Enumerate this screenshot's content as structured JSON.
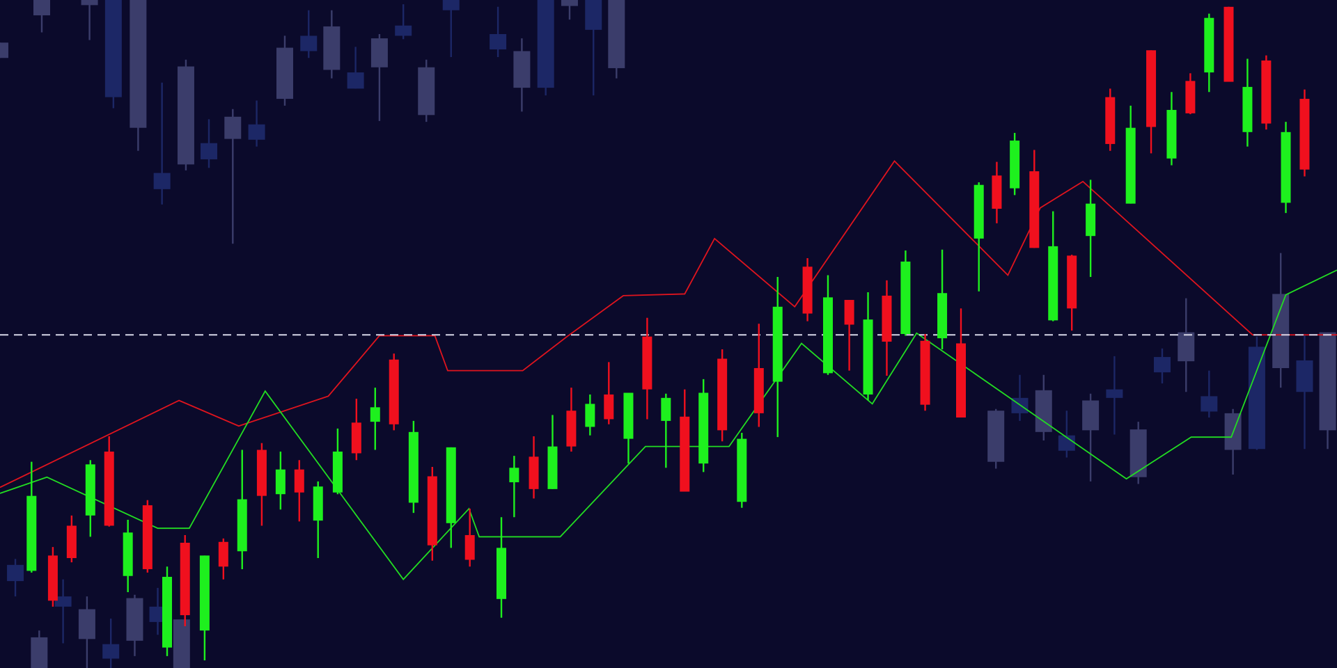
{
  "chart_data": {
    "type": "candlestick",
    "xlim": [
      0,
      1568
    ],
    "ylim": [
      0,
      784
    ],
    "background": "#0b0a2b",
    "up_color": "#1ef01e",
    "down_color": "#f0101e",
    "ghost_candles": [
      {
        "color": "#3b3d6b",
        "x": [
          0,
          49,
          105,
          162,
          218,
          273,
          334,
          389,
          445,
          500,
          612,
          668,
          723,
          46,
          102,
          158,
          213,
          1168,
          1224,
          1279,
          1335,
          1391,
          1446,
          1502,
          1557
        ],
        "open": [
          734,
          784,
          784,
          784,
          706,
          647,
          728,
          753,
          739,
          705,
          724,
          784,
          784,
          36,
          69,
          82,
          57,
          302,
          326,
          314,
          280,
          394,
          299,
          439,
          394
        ],
        "close": [
          716,
          766,
          778,
          634,
          591,
          621,
          668,
          702,
          705,
          649,
          681,
          777,
          704,
          0,
          34,
          32,
          0,
          242,
          277,
          279,
          224,
          360,
          256,
          352,
          279
        ],
        "high": [
          734,
          784,
          784,
          784,
          714,
          656,
          742,
          772,
          744,
          714,
          739,
          784,
          784,
          44,
          84,
          86,
          57,
          304,
          344,
          322,
          289,
          434,
          304,
          487,
          394
        ],
        "low": [
          716,
          746,
          737,
          607,
          584,
          498,
          660,
          692,
          642,
          641,
          653,
          761,
          692,
          0,
          0,
          14,
          0,
          234,
          267,
          219,
          216,
          324,
          227,
          329,
          257
        ]
      },
      {
        "color": "#1c2766",
        "x": [
          133,
          190,
          245,
          301,
          362,
          417,
          473,
          529,
          584,
          640,
          696,
          18,
          74,
          130,
          185,
          1196,
          1251,
          1307,
          1363,
          1418,
          1474,
          1530
        ],
        "open": [
          784,
          581,
          616,
          638,
          742,
          699,
          754,
          784,
          744,
          784,
          784,
          121,
          84,
          28,
          72,
          317,
          273,
          327,
          365,
          319,
          377,
          361
        ],
        "close": [
          670,
          562,
          597,
          620,
          724,
          680,
          742,
          772,
          726,
          681,
          749,
          102,
          72,
          11,
          54,
          299,
          255,
          317,
          347,
          301,
          257,
          324
        ],
        "high": [
          784,
          687,
          644,
          666,
          772,
          729,
          779,
          784,
          776,
          784,
          784,
          128,
          104,
          58,
          94,
          344,
          302,
          366,
          375,
          349,
          389,
          392
        ],
        "low": [
          657,
          544,
          587,
          612,
          716,
          680,
          738,
          717,
          717,
          672,
          672,
          84,
          29,
          0,
          39,
          290,
          247,
          274,
          334,
          294,
          256,
          257
        ]
      }
    ],
    "candles": {
      "x": [
        37,
        62,
        84,
        106,
        128,
        150,
        173,
        196,
        217,
        240,
        262,
        284,
        307,
        329,
        351,
        373,
        396,
        418,
        440,
        462,
        485,
        507,
        529,
        551,
        588,
        603,
        626,
        648,
        670,
        692,
        714,
        737,
        759,
        781,
        803,
        825,
        847,
        870,
        890,
        912,
        947,
        971,
        996,
        1018,
        1040,
        1062,
        1085,
        1105,
        1127,
        1148,
        1169,
        1190,
        1213,
        1235,
        1257,
        1279,
        1302,
        1326,
        1350,
        1374,
        1396,
        1418,
        1441,
        1463,
        1485,
        1508,
        1530
      ],
      "open": [
        114,
        132,
        167,
        179,
        254,
        108,
        191,
        24,
        147,
        44,
        148,
        137,
        256,
        204,
        233,
        173,
        206,
        288,
        289,
        362,
        194,
        225,
        170,
        156,
        81,
        218,
        248,
        210,
        302,
        283,
        321,
        269,
        389,
        290,
        295,
        240,
        363,
        195,
        352,
        336,
        471,
        346,
        432,
        321,
        437,
        392,
        384,
        387,
        381,
        504,
        578,
        563,
        583,
        408,
        484,
        507,
        670,
        545,
        725,
        598,
        689,
        699,
        776,
        629,
        713,
        546,
        668
      ],
      "high": [
        242,
        142,
        179,
        244,
        272,
        174,
        197,
        119,
        156,
        132,
        152,
        256,
        264,
        254,
        244,
        219,
        281,
        316,
        329,
        369,
        290,
        236,
        259,
        187,
        177,
        249,
        272,
        297,
        329,
        321,
        359,
        323,
        411,
        322,
        327,
        339,
        374,
        276,
        404,
        459,
        481,
        461,
        432,
        441,
        455,
        490,
        392,
        491,
        422,
        570,
        594,
        628,
        608,
        536,
        485,
        573,
        680,
        660,
        725,
        676,
        698,
        768,
        776,
        715,
        719,
        641,
        679
      ],
      "low": [
        112,
        72,
        124,
        154,
        166,
        89,
        112,
        14,
        49,
        9,
        104,
        116,
        167,
        186,
        172,
        129,
        204,
        244,
        256,
        279,
        182,
        126,
        141,
        119,
        59,
        177,
        199,
        210,
        254,
        273,
        286,
        240,
        292,
        235,
        207,
        230,
        266,
        188,
        283,
        271,
        407,
        344,
        349,
        314,
        343,
        390,
        302,
        374,
        294,
        442,
        522,
        555,
        493,
        407,
        396,
        459,
        607,
        545,
        604,
        590,
        650,
        676,
        688,
        612,
        632,
        534,
        577
      ],
      "close": [
        202,
        79,
        129,
        239,
        167,
        159,
        116,
        107,
        62,
        132,
        119,
        198,
        202,
        233,
        206,
        213,
        254,
        252,
        306,
        286,
        277,
        144,
        259,
        127,
        141,
        235,
        210,
        260,
        260,
        310,
        292,
        323,
        327,
        317,
        207,
        323,
        279,
        269,
        299,
        424,
        416,
        435,
        403,
        409,
        383,
        477,
        309,
        440,
        294,
        567,
        539,
        619,
        493,
        495,
        422,
        545,
        615,
        634,
        635,
        655,
        651,
        763,
        688,
        682,
        639,
        629,
        585
      ]
    },
    "lines": [
      {
        "color": "#e0141e",
        "x": [
          0,
          210,
          280,
          385,
          445,
          510,
          525,
          613,
          665,
          731,
          803,
          838,
          932,
          1049,
          1182,
          1220,
          1270,
          1469,
          1568
        ],
        "values": [
          212,
          314,
          284,
          319,
          390,
          390,
          349,
          349,
          389,
          437,
          439,
          504,
          424,
          595,
          461,
          540,
          571,
          391,
          391
        ]
      },
      {
        "color": "#22dd22",
        "x": [
          0,
          55,
          185,
          222,
          311,
          473,
          550,
          562,
          657,
          757,
          855,
          940,
          1023,
          1075,
          1321,
          1397,
          1444,
          1508,
          1568
        ],
        "values": [
          205,
          224,
          164,
          164,
          325,
          104,
          187,
          154,
          154,
          260,
          260,
          381,
          310,
          393,
          222,
          271,
          271,
          438,
          467
        ]
      }
    ],
    "hline": {
      "value": 391,
      "color": "#d8d8e8"
    }
  }
}
